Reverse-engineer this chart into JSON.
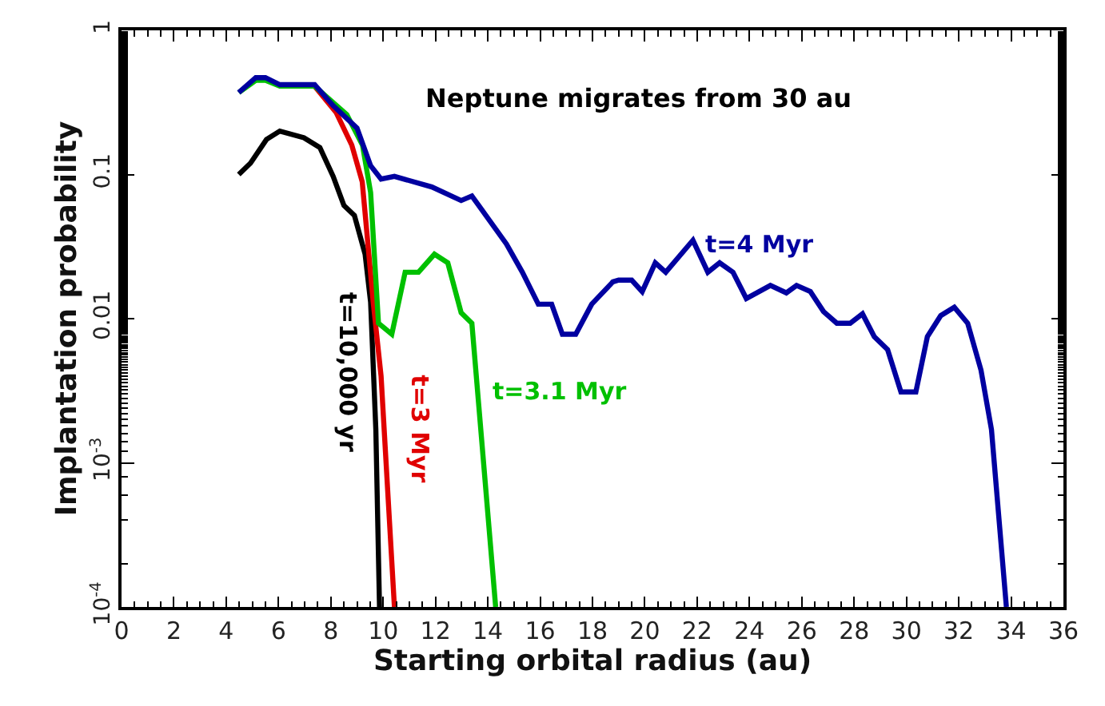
{
  "chart_data": {
    "type": "line",
    "title": "Neptune migrates from 30 au",
    "xlabel": "Starting orbital radius (au)",
    "ylabel": "Implantation probability",
    "xlim": [
      0,
      36
    ],
    "xticks": [
      0,
      2,
      4,
      6,
      8,
      10,
      12,
      14,
      16,
      18,
      20,
      22,
      24,
      26,
      28,
      30,
      32,
      34,
      36
    ],
    "ylim": [
      0.0001,
      1
    ],
    "yticks": [
      {
        "value": 0.0001,
        "label": "10$^{-4}$"
      },
      {
        "value": 0.001,
        "label": "10$^{-3}$"
      },
      0.01,
      0.1,
      1
    ],
    "log": "y",
    "legend": false,
    "marker": "none",
    "line_style": "solid",
    "series": [
      {
        "name": "t=10,000 yr",
        "color": "#000000",
        "x": [
          4.48,
          4.93,
          5.54,
          6.05,
          6.97,
          7.58,
          8.09,
          8.5,
          8.9,
          9.31,
          9.52,
          9.72,
          9.86
        ],
        "values": [
          0.1,
          0.12,
          0.175,
          0.2,
          0.18,
          0.154,
          0.097,
          0.061,
          0.052,
          0.028,
          0.013,
          0.0017,
          0.0001
        ]
      },
      {
        "name": "t=3 Myr",
        "color": "#e00000",
        "x": [
          7.38,
          8.2,
          8.8,
          9.2,
          9.62,
          9.92,
          10.43
        ],
        "values": [
          0.41,
          0.27,
          0.16,
          0.089,
          0.013,
          0.004,
          0.0001
        ]
      },
      {
        "name": "t=3.1 Myr",
        "color": "#00c000",
        "x": [
          4.48,
          5.13,
          5.5,
          6.05,
          7.38,
          8.61,
          9.21,
          9.52,
          9.82,
          10.33,
          10.84,
          11.35,
          11.96,
          12.47,
          12.98,
          13.39,
          14.3
        ],
        "values": [
          0.37,
          0.45,
          0.45,
          0.41,
          0.41,
          0.26,
          0.16,
          0.075,
          0.0093,
          0.0078,
          0.021,
          0.021,
          0.028,
          0.0244,
          0.011,
          0.0093,
          0.0001
        ]
      },
      {
        "name": "t=4 Myr",
        "color": "#0000a0",
        "x": [
          4.48,
          5.13,
          5.5,
          6.05,
          7.38,
          8.09,
          9.0,
          9.52,
          9.92,
          10.43,
          11.86,
          12.98,
          13.39,
          14.71,
          15.32,
          15.93,
          16.44,
          16.85,
          17.36,
          17.97,
          18.78,
          19.0,
          19.5,
          19.9,
          20.4,
          20.8,
          21.84,
          22.41,
          22.86,
          23.37,
          23.88,
          24.8,
          25.41,
          25.8,
          26.33,
          26.83,
          27.34,
          27.85,
          28.32,
          28.77,
          29.28,
          29.79,
          30.36,
          30.8,
          31.31,
          31.83,
          32.34,
          32.85,
          33.25,
          33.82
        ],
        "values": [
          0.37,
          0.47,
          0.47,
          0.42,
          0.42,
          0.3,
          0.21,
          0.115,
          0.093,
          0.097,
          0.082,
          0.066,
          0.071,
          0.033,
          0.021,
          0.0126,
          0.0126,
          0.0078,
          0.0078,
          0.0126,
          0.018,
          0.0185,
          0.0185,
          0.0154,
          0.0244,
          0.021,
          0.035,
          0.021,
          0.0244,
          0.021,
          0.0138,
          0.017,
          0.0151,
          0.017,
          0.0154,
          0.0112,
          0.0093,
          0.0093,
          0.0108,
          0.0075,
          0.0061,
          0.0031,
          0.0031,
          0.0075,
          0.0105,
          0.012,
          0.0093,
          0.0044,
          0.0017,
          0.0001
        ]
      }
    ]
  }
}
